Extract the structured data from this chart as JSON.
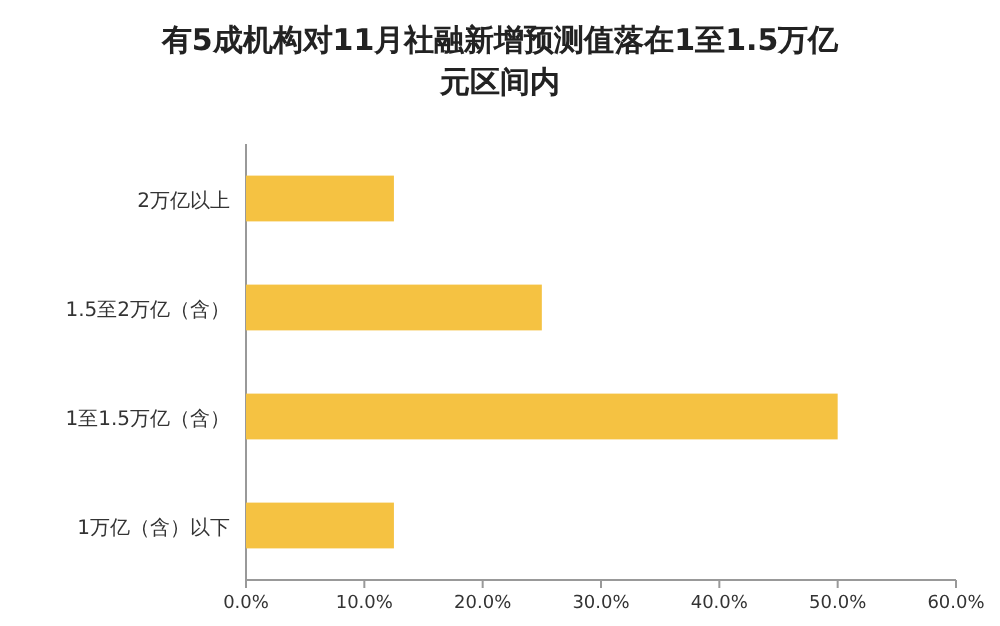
{
  "chart_data": {
    "type": "bar",
    "orientation": "horizontal",
    "title": "有5成机构对11月社融新增预测值落在1至1.5万亿元区间内",
    "categories": [
      "2万亿以上",
      "1.5至2万亿（含）",
      "1至1.5万亿（含）",
      "1万亿（含）以下"
    ],
    "series": [
      {
        "color": "#f5c242",
        "values": [
          12.5,
          25,
          50,
          12.5
        ]
      }
    ],
    "xlim": [
      0,
      60
    ],
    "xticks": [
      {
        "value": 0,
        "label": "0.0%"
      },
      {
        "value": 10,
        "label": "10.0%"
      },
      {
        "value": 20,
        "label": "20.0%"
      },
      {
        "value": 30,
        "label": "30.0%"
      },
      {
        "value": 40,
        "label": "40.0%"
      },
      {
        "value": 50,
        "label": "50.0%"
      },
      {
        "value": 60,
        "label": "60.0%"
      }
    ],
    "grid": false
  }
}
